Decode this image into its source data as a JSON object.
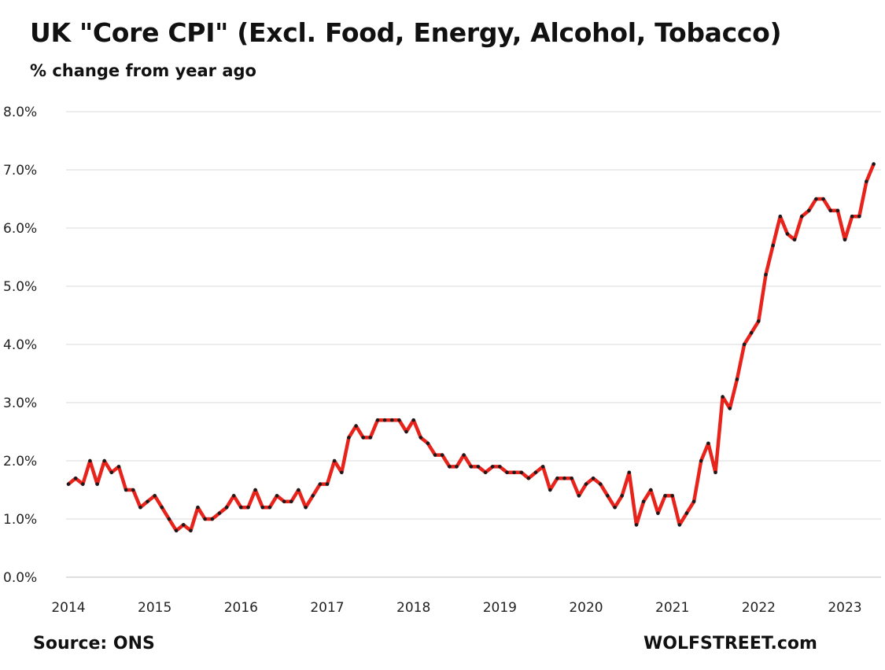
{
  "header": {
    "title": "UK \"Core CPI\" (Excl. Food, Energy, Alcohol, Tobacco)",
    "subtitle": "% change from year ago"
  },
  "footer": {
    "source": "Source: ONS",
    "brand": "WOLFSTREET.com"
  },
  "chart_data": {
    "type": "line",
    "title": "UK \"Core CPI\" (Excl. Food, Energy, Alcohol, Tobacco)",
    "subtitle": "% change from year ago",
    "xlabel": "",
    "ylabel": "",
    "ylim": [
      0,
      8
    ],
    "yticks": [
      "0.0%",
      "1.0%",
      "2.0%",
      "3.0%",
      "4.0%",
      "5.0%",
      "6.0%",
      "7.0%",
      "8.0%"
    ],
    "xticks": [
      "2014",
      "2015",
      "2016",
      "2017",
      "2018",
      "2019",
      "2020",
      "2021",
      "2022",
      "2023"
    ],
    "grid": "horizontal",
    "line_color": "#e8231c",
    "marker_color": "#1a1a1a",
    "series": [
      {
        "start": "2014-01",
        "frequency": "monthly",
        "values": [
          1.6,
          1.7,
          1.6,
          2.0,
          1.6,
          2.0,
          1.8,
          1.9,
          1.5,
          1.5,
          1.2,
          1.3,
          1.4,
          1.2,
          1.0,
          0.8,
          0.9,
          0.8,
          1.2,
          1.0,
          1.0,
          1.1,
          1.2,
          1.4,
          1.2,
          1.2,
          1.5,
          1.2,
          1.2,
          1.4,
          1.3,
          1.3,
          1.5,
          1.2,
          1.4,
          1.6,
          1.6,
          2.0,
          1.8,
          2.4,
          2.6,
          2.4,
          2.4,
          2.7,
          2.7,
          2.7,
          2.7,
          2.5,
          2.7,
          2.4,
          2.3,
          2.1,
          2.1,
          1.9,
          1.9,
          2.1,
          1.9,
          1.9,
          1.8,
          1.9,
          1.9,
          1.8,
          1.8,
          1.8,
          1.7,
          1.8,
          1.9,
          1.5,
          1.7,
          1.7,
          1.7,
          1.4,
          1.6,
          1.7,
          1.6,
          1.4,
          1.2,
          1.4,
          1.8,
          0.9,
          1.3,
          1.5,
          1.1,
          1.4,
          1.4,
          0.9,
          1.1,
          1.3,
          2.0,
          2.3,
          1.8,
          3.1,
          2.9,
          3.4,
          4.0,
          4.2,
          4.4,
          5.2,
          5.7,
          6.2,
          5.9,
          5.8,
          6.2,
          6.3,
          6.5,
          6.5,
          6.3,
          6.3,
          5.8,
          6.2,
          6.2,
          6.8,
          7.1
        ]
      }
    ]
  }
}
